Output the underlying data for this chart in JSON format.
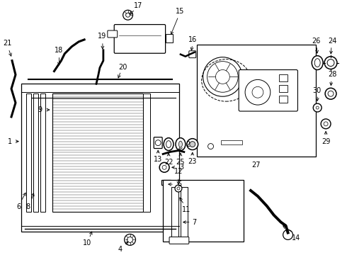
{
  "bg": "#ffffff",
  "lc": "#000000",
  "fw": 4.9,
  "fh": 3.6,
  "dpi": 100
}
